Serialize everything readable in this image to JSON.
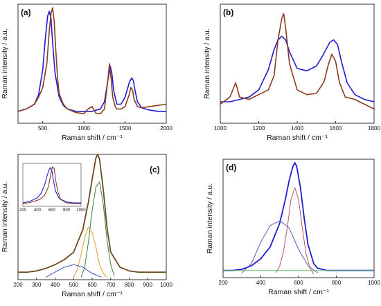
{
  "chart_data": [
    {
      "panel": "(a)",
      "type": "line",
      "xlabel": "Raman shift / cm⁻¹",
      "ylabel": "Raman intensity / a.u.",
      "xlim": [
        200,
        2000
      ],
      "ylim": [
        0,
        1
      ],
      "xticks": [
        500,
        1000,
        1500,
        2000
      ],
      "series": [
        {
          "color": "#1c1cd6",
          "x": [
            200,
            300,
            400,
            450,
            500,
            530,
            560,
            580,
            600,
            620,
            650,
            700,
            750,
            800,
            900,
            1000,
            1100,
            1200,
            1250,
            1300,
            1320,
            1340,
            1360,
            1400,
            1450,
            1500,
            1550,
            1580,
            1600,
            1620,
            1650,
            1700,
            1800,
            1900,
            2000
          ],
          "y": [
            0.1,
            0.12,
            0.16,
            0.24,
            0.45,
            0.7,
            0.9,
            0.94,
            0.88,
            0.68,
            0.42,
            0.22,
            0.15,
            0.12,
            0.1,
            0.1,
            0.1,
            0.12,
            0.18,
            0.4,
            0.48,
            0.42,
            0.28,
            0.16,
            0.16,
            0.22,
            0.34,
            0.38,
            0.36,
            0.28,
            0.18,
            0.13,
            0.11,
            0.1,
            0.1
          ]
        },
        {
          "color": "#8b3a1f",
          "x": [
            200,
            300,
            400,
            450,
            500,
            550,
            580,
            600,
            620,
            640,
            660,
            680,
            700,
            750,
            800,
            900,
            1000,
            1050,
            1100,
            1150,
            1200,
            1250,
            1290,
            1310,
            1330,
            1350,
            1380,
            1400,
            1450,
            1500,
            1550,
            1570,
            1590,
            1610,
            1650,
            1700,
            1800,
            1900,
            2000
          ],
          "y": [
            0.1,
            0.12,
            0.16,
            0.22,
            0.3,
            0.5,
            0.78,
            0.92,
            0.97,
            0.85,
            0.6,
            0.38,
            0.25,
            0.16,
            0.12,
            0.09,
            0.08,
            0.12,
            0.14,
            0.08,
            0.08,
            0.12,
            0.36,
            0.5,
            0.38,
            0.22,
            0.14,
            0.12,
            0.12,
            0.14,
            0.24,
            0.3,
            0.28,
            0.2,
            0.14,
            0.13,
            0.14,
            0.15,
            0.16
          ]
        }
      ]
    },
    {
      "panel": "(b)",
      "type": "line",
      "xlabel": "Raman shift / cm⁻¹",
      "ylabel": "Raman intensity / a.u.",
      "xlim": [
        1000,
        1800
      ],
      "ylim": [
        0,
        1
      ],
      "xticks": [
        1000,
        1200,
        1400,
        1600,
        1800
      ],
      "series": [
        {
          "color": "#1c1cd6",
          "x": [
            1000,
            1050,
            1100,
            1150,
            1200,
            1250,
            1280,
            1300,
            1320,
            1340,
            1360,
            1400,
            1450,
            1500,
            1530,
            1550,
            1570,
            1590,
            1610,
            1630,
            1660,
            1700,
            1750,
            1800
          ],
          "y": [
            0.18,
            0.18,
            0.2,
            0.22,
            0.28,
            0.45,
            0.62,
            0.7,
            0.73,
            0.7,
            0.6,
            0.46,
            0.44,
            0.48,
            0.56,
            0.62,
            0.68,
            0.7,
            0.66,
            0.52,
            0.34,
            0.24,
            0.2,
            0.18
          ]
        },
        {
          "color": "#8b3a1f",
          "x": [
            1000,
            1050,
            1080,
            1100,
            1150,
            1200,
            1250,
            1280,
            1300,
            1320,
            1330,
            1340,
            1360,
            1400,
            1450,
            1500,
            1540,
            1560,
            1580,
            1600,
            1620,
            1650,
            1700,
            1750,
            1800
          ],
          "y": [
            0.16,
            0.22,
            0.34,
            0.22,
            0.2,
            0.24,
            0.28,
            0.4,
            0.7,
            0.88,
            0.92,
            0.8,
            0.5,
            0.28,
            0.24,
            0.25,
            0.35,
            0.48,
            0.58,
            0.52,
            0.34,
            0.22,
            0.2,
            0.16,
            0.12
          ]
        }
      ]
    },
    {
      "panel": "(c)",
      "type": "line",
      "xlabel": "Raman shift / cm⁻¹",
      "ylabel": "Raman intensity / a.u.",
      "xlim": [
        200,
        1000
      ],
      "ylim": [
        0,
        1
      ],
      "xticks": [
        200,
        300,
        400,
        500,
        600,
        700,
        800,
        900,
        1000
      ],
      "series": [
        {
          "color": "#6b4a1f",
          "x": [
            200,
            250,
            300,
            350,
            400,
            450,
            500,
            550,
            580,
            600,
            620,
            630,
            640,
            660,
            680,
            700,
            750,
            800,
            850,
            900,
            950,
            1000
          ],
          "y": [
            0.06,
            0.06,
            0.07,
            0.09,
            0.12,
            0.16,
            0.22,
            0.4,
            0.62,
            0.8,
            0.97,
            1.0,
            0.96,
            0.72,
            0.42,
            0.22,
            0.1,
            0.07,
            0.06,
            0.06,
            0.06,
            0.06
          ]
        },
        {
          "color": "#3a7d3a",
          "x": [
            540,
            560,
            580,
            600,
            620,
            640,
            660,
            680,
            700,
            720
          ],
          "y": [
            0.02,
            0.1,
            0.3,
            0.55,
            0.74,
            0.78,
            0.6,
            0.32,
            0.12,
            0.03
          ]
        },
        {
          "color": "#e69a2a",
          "x": [
            500,
            520,
            540,
            560,
            580,
            600,
            620,
            640,
            660,
            680
          ],
          "y": [
            0.02,
            0.08,
            0.2,
            0.34,
            0.42,
            0.38,
            0.26,
            0.12,
            0.05,
            0.02
          ]
        },
        {
          "color": "#3a55c0",
          "x": [
            350,
            400,
            450,
            500,
            550,
            600,
            650
          ],
          "y": [
            0.02,
            0.06,
            0.1,
            0.12,
            0.1,
            0.05,
            0.02
          ]
        }
      ],
      "inset": {
        "xlim": [
          200,
          1000
        ],
        "xticks": [
          200,
          400,
          600,
          800,
          1000
        ],
        "series": [
          {
            "color": "#1c1cd6",
            "x": [
              200,
              300,
              400,
              450,
              500,
              530,
              560,
              580,
              600,
              620,
              650,
              700,
              800,
              900,
              1000
            ],
            "y": [
              0.08,
              0.12,
              0.2,
              0.3,
              0.5,
              0.7,
              0.85,
              0.9,
              0.82,
              0.6,
              0.35,
              0.18,
              0.1,
              0.08,
              0.08
            ]
          },
          {
            "color": "#8b3a1f",
            "x": [
              200,
              300,
              400,
              450,
              500,
              550,
              590,
              610,
              630,
              650,
              680,
              720,
              800,
              900,
              1000
            ],
            "y": [
              0.06,
              0.09,
              0.14,
              0.18,
              0.26,
              0.45,
              0.8,
              0.92,
              0.88,
              0.62,
              0.34,
              0.16,
              0.08,
              0.06,
              0.06
            ]
          }
        ]
      }
    },
    {
      "panel": "(d)",
      "type": "line",
      "xlabel": "Raman shift / cm⁻¹",
      "ylabel": "Raman intensity / a.u.",
      "xlim": [
        200,
        1000
      ],
      "ylim": [
        0,
        1
      ],
      "xticks": [
        200,
        400,
        600,
        800,
        1000
      ],
      "series": [
        {
          "color": "#1c1cd6",
          "x": [
            200,
            250,
            300,
            350,
            400,
            450,
            500,
            530,
            550,
            570,
            580,
            590,
            610,
            630,
            650,
            680,
            700,
            750,
            800,
            900,
            1000
          ],
          "y": [
            0.06,
            0.06,
            0.07,
            0.1,
            0.16,
            0.26,
            0.46,
            0.66,
            0.82,
            0.94,
            0.97,
            0.94,
            0.76,
            0.5,
            0.28,
            0.12,
            0.08,
            0.06,
            0.06,
            0.06,
            0.06
          ]
        },
        {
          "color": "#b05a5a",
          "x": [
            480,
            500,
            520,
            540,
            560,
            580,
            600,
            620,
            640,
            660,
            680
          ],
          "y": [
            0.04,
            0.1,
            0.22,
            0.42,
            0.66,
            0.76,
            0.66,
            0.42,
            0.2,
            0.08,
            0.03
          ]
        },
        {
          "color": "#5a5ab0",
          "x": [
            300,
            350,
            400,
            450,
            500,
            550,
            600,
            650,
            700
          ],
          "y": [
            0.04,
            0.12,
            0.3,
            0.44,
            0.48,
            0.42,
            0.24,
            0.1,
            0.04
          ]
        },
        {
          "color": "#6abf6a",
          "x": [
            200,
            1000
          ],
          "y": [
            0.06,
            0.06
          ]
        }
      ]
    }
  ]
}
